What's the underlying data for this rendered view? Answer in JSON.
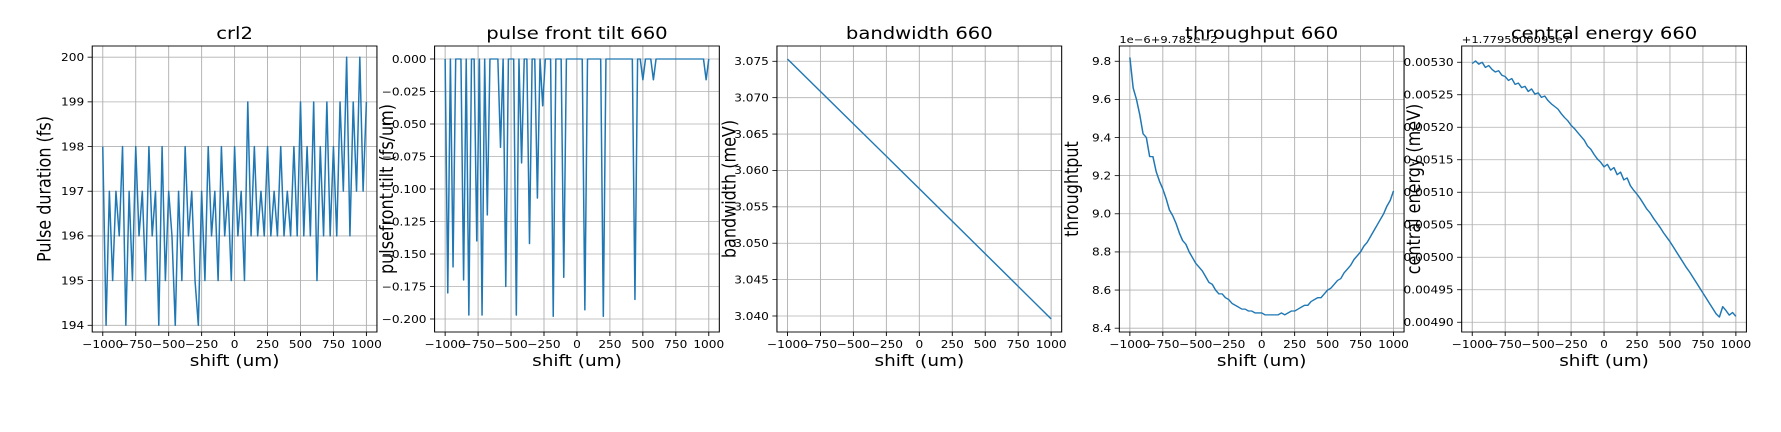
{
  "chart_data": [
    {
      "type": "line",
      "title": "crl2",
      "xlabel": "shift (um)",
      "ylabel": "Pulse duration (fs)",
      "xlim": [
        -1080,
        1080
      ],
      "ylim": [
        193.85,
        200.25
      ],
      "xticks": [
        -1000,
        -750,
        -500,
        -250,
        0,
        250,
        500,
        750,
        1000
      ],
      "xtick_labels": [
        "−1000",
        "−750",
        "−500",
        "−250",
        "0",
        "250",
        "500",
        "750",
        "1000"
      ],
      "yticks": [
        194,
        195,
        196,
        197,
        198,
        199,
        200
      ],
      "ytick_labels": [
        "194",
        "195",
        "196",
        "197",
        "198",
        "199",
        "200"
      ],
      "offset_text": "",
      "grid": true,
      "color": "#1f77b4",
      "x": [
        -1000,
        -975,
        -950,
        -925,
        -900,
        -875,
        -850,
        -825,
        -800,
        -775,
        -750,
        -725,
        -700,
        -675,
        -650,
        -625,
        -600,
        -575,
        -550,
        -525,
        -500,
        -475,
        -450,
        -425,
        -400,
        -375,
        -350,
        -325,
        -300,
        -275,
        -250,
        -225,
        -200,
        -175,
        -150,
        -125,
        -100,
        -75,
        -50,
        -25,
        0,
        25,
        50,
        75,
        100,
        125,
        150,
        175,
        200,
        225,
        250,
        275,
        300,
        325,
        350,
        375,
        400,
        425,
        450,
        475,
        500,
        525,
        550,
        575,
        600,
        625,
        650,
        675,
        700,
        725,
        750,
        775,
        800,
        825,
        850,
        875,
        900,
        925,
        950,
        975,
        1000
      ],
      "values": [
        198,
        194,
        197,
        195,
        197,
        196,
        198,
        194,
        197,
        195,
        198,
        196,
        197,
        195,
        198,
        196,
        197,
        194,
        198,
        195,
        197,
        196,
        194,
        197,
        195,
        198,
        196,
        197,
        195,
        194,
        197,
        195,
        198,
        196,
        197,
        195,
        198,
        196,
        197,
        195,
        198,
        196,
        197,
        195,
        199,
        196,
        198,
        196,
        197,
        196,
        198,
        196,
        197,
        196,
        198,
        196,
        197,
        196,
        198,
        196,
        199,
        196,
        198,
        196,
        199,
        195,
        198,
        196,
        199,
        196,
        198,
        196,
        199,
        197,
        200,
        196,
        199,
        197,
        200,
        197,
        199
      ]
    },
    {
      "type": "line",
      "title": "pulse front tilt 660",
      "xlabel": "shift (um)",
      "ylabel": "pulsefront tilt (fs/um)",
      "xlim": [
        -1080,
        1080
      ],
      "ylim": [
        -0.21,
        0.01
      ],
      "xticks": [
        -1000,
        -750,
        -500,
        -250,
        0,
        250,
        500,
        750,
        1000
      ],
      "xtick_labels": [
        "−1000",
        "−750",
        "−500",
        "−250",
        "0",
        "250",
        "500",
        "750",
        "1000"
      ],
      "yticks": [
        0.0,
        -0.025,
        -0.05,
        -0.075,
        -0.1,
        -0.125,
        -0.15,
        -0.175,
        -0.2
      ],
      "ytick_labels": [
        "0.000",
        "−0.025",
        "−0.050",
        "−0.075",
        "−0.100",
        "−0.125",
        "−0.150",
        "−0.175",
        "−0.200"
      ],
      "offset_text": "",
      "grid": true,
      "color": "#1f77b4",
      "x": [
        -1000,
        -980,
        -960,
        -940,
        -920,
        -900,
        -880,
        -860,
        -840,
        -820,
        -800,
        -780,
        -760,
        -740,
        -720,
        -700,
        -680,
        -660,
        -640,
        -620,
        -600,
        -580,
        -560,
        -540,
        -520,
        -500,
        -480,
        -460,
        -440,
        -420,
        -400,
        -380,
        -360,
        -340,
        -320,
        -300,
        -280,
        -260,
        -240,
        -220,
        -200,
        -180,
        -160,
        -140,
        -120,
        -100,
        -80,
        -60,
        -40,
        -20,
        0,
        20,
        40,
        60,
        80,
        100,
        120,
        140,
        160,
        180,
        200,
        220,
        240,
        260,
        280,
        300,
        320,
        340,
        360,
        380,
        400,
        420,
        440,
        460,
        480,
        500,
        520,
        540,
        560,
        580,
        600,
        620,
        640,
        660,
        680,
        700,
        720,
        740,
        760,
        780,
        800,
        820,
        840,
        860,
        880,
        900,
        920,
        940,
        960,
        980,
        1000
      ],
      "values": [
        0,
        -0.18,
        0,
        -0.16,
        0,
        0,
        0,
        -0.17,
        0,
        -0.197,
        0,
        0,
        -0.14,
        0,
        -0.197,
        0,
        -0.12,
        0,
        0,
        0,
        0,
        -0.068,
        0,
        -0.175,
        0,
        0,
        0,
        -0.197,
        0,
        -0.08,
        0,
        0,
        -0.142,
        0,
        0,
        -0.107,
        0,
        -0.036,
        0,
        0,
        0,
        -0.198,
        0,
        0,
        0,
        -0.168,
        0,
        0,
        0,
        0,
        0,
        0,
        0,
        -0.193,
        0,
        0,
        0,
        0,
        0,
        0,
        -0.198,
        0,
        0,
        0,
        0,
        0,
        0,
        0,
        0,
        0,
        0,
        0,
        -0.185,
        0,
        0,
        -0.016,
        0,
        0,
        0,
        -0.016,
        0,
        0,
        0,
        0,
        0,
        0,
        0,
        0,
        0,
        0,
        0,
        0,
        0,
        0,
        0,
        0,
        0,
        0,
        0,
        -0.016,
        0
      ]
    },
    {
      "type": "line",
      "title": "bandwidth 660",
      "xlabel": "shift (um)",
      "ylabel": "bandwidth (meV)",
      "xlim": [
        -1080,
        1080
      ],
      "ylim": [
        3.0378,
        3.0771
      ],
      "xticks": [
        -1000,
        -750,
        -500,
        -250,
        0,
        250,
        500,
        750,
        1000
      ],
      "xtick_labels": [
        "−1000",
        "−750",
        "−500",
        "−250",
        "0",
        "250",
        "500",
        "750",
        "1000"
      ],
      "yticks": [
        3.04,
        3.045,
        3.05,
        3.055,
        3.06,
        3.065,
        3.07,
        3.075
      ],
      "ytick_labels": [
        "3.040",
        "3.045",
        "3.050",
        "3.055",
        "3.060",
        "3.065",
        "3.070",
        "3.075"
      ],
      "offset_text": "",
      "grid": true,
      "color": "#1f77b4",
      "x": [
        -1000,
        0,
        1000
      ],
      "values": [
        3.0753,
        3.0575,
        3.0396
      ]
    },
    {
      "type": "line",
      "title": "throughput 660",
      "xlabel": "shift (um)",
      "ylabel": "throughtput",
      "xlim": [
        -1080,
        1080
      ],
      "ylim": [
        8.38,
        9.88
      ],
      "xticks": [
        -1000,
        -750,
        -500,
        -250,
        0,
        250,
        500,
        750,
        1000
      ],
      "xtick_labels": [
        "−1000",
        "−750",
        "−500",
        "−250",
        "0",
        "250",
        "500",
        "750",
        "1000"
      ],
      "yticks": [
        8.4,
        8.6,
        8.8,
        9.0,
        9.2,
        9.4,
        9.6,
        9.8
      ],
      "ytick_labels": [
        "8.4",
        "8.6",
        "8.8",
        "9.0",
        "9.2",
        "9.4",
        "9.6",
        "9.8"
      ],
      "offset_text": "1e−6+9.782e−2",
      "grid": true,
      "color": "#1f77b4",
      "x": [
        -1000,
        -975,
        -950,
        -925,
        -900,
        -875,
        -850,
        -825,
        -800,
        -775,
        -750,
        -725,
        -700,
        -675,
        -650,
        -625,
        -600,
        -575,
        -550,
        -525,
        -500,
        -475,
        -450,
        -425,
        -400,
        -375,
        -350,
        -325,
        -300,
        -275,
        -250,
        -225,
        -200,
        -175,
        -150,
        -125,
        -100,
        -75,
        -50,
        -25,
        0,
        25,
        50,
        75,
        100,
        125,
        150,
        175,
        200,
        225,
        250,
        275,
        300,
        325,
        350,
        375,
        400,
        425,
        450,
        475,
        500,
        525,
        550,
        575,
        600,
        625,
        650,
        675,
        700,
        725,
        750,
        775,
        800,
        825,
        850,
        875,
        900,
        925,
        950,
        975,
        1000
      ],
      "values": [
        9.82,
        9.66,
        9.6,
        9.52,
        9.42,
        9.4,
        9.3,
        9.3,
        9.22,
        9.17,
        9.13,
        9.08,
        9.02,
        8.99,
        8.95,
        8.9,
        8.86,
        8.84,
        8.8,
        8.77,
        8.74,
        8.72,
        8.7,
        8.67,
        8.64,
        8.63,
        8.6,
        8.58,
        8.58,
        8.56,
        8.55,
        8.53,
        8.52,
        8.51,
        8.5,
        8.5,
        8.49,
        8.49,
        8.48,
        8.48,
        8.48,
        8.47,
        8.47,
        8.47,
        8.47,
        8.47,
        8.48,
        8.47,
        8.48,
        8.49,
        8.49,
        8.5,
        8.51,
        8.52,
        8.52,
        8.54,
        8.55,
        8.56,
        8.56,
        8.58,
        8.6,
        8.61,
        8.63,
        8.65,
        8.66,
        8.69,
        8.71,
        8.73,
        8.76,
        8.78,
        8.8,
        8.83,
        8.85,
        8.88,
        8.91,
        8.94,
        8.97,
        9.0,
        9.04,
        9.07,
        9.12
      ]
    },
    {
      "type": "line",
      "title": "central energy 660",
      "xlabel": "shift (um)",
      "ylabel": "central energy (meV)",
      "xlim": [
        -1080,
        1080
      ],
      "ylim": [
        0.004885,
        0.005325
      ],
      "xticks": [
        -1000,
        -750,
        -500,
        -250,
        0,
        250,
        500,
        750,
        1000
      ],
      "xtick_labels": [
        "−1000",
        "−750",
        "−500",
        "−250",
        "0",
        "250",
        "500",
        "750",
        "1000"
      ],
      "yticks": [
        0.0049,
        0.00495,
        0.005,
        0.00505,
        0.0051,
        0.00515,
        0.0052,
        0.00525,
        0.0053
      ],
      "ytick_labels": [
        "0.00490",
        "0.00495",
        "0.00500",
        "0.00505",
        "0.00510",
        "0.00515",
        "0.00520",
        "0.00525",
        "0.00530"
      ],
      "offset_text": "+1.7795000093e7",
      "grid": true,
      "color": "#1f77b4",
      "x": [
        -1000,
        -975,
        -950,
        -925,
        -900,
        -875,
        -850,
        -825,
        -800,
        -775,
        -750,
        -725,
        -700,
        -675,
        -650,
        -625,
        -600,
        -575,
        -550,
        -525,
        -500,
        -475,
        -450,
        -425,
        -400,
        -375,
        -350,
        -325,
        -300,
        -275,
        -250,
        -225,
        -200,
        -175,
        -150,
        -125,
        -100,
        -75,
        -50,
        -25,
        0,
        25,
        50,
        75,
        100,
        125,
        150,
        175,
        200,
        225,
        250,
        275,
        300,
        325,
        350,
        375,
        400,
        425,
        450,
        475,
        500,
        525,
        550,
        575,
        600,
        625,
        650,
        675,
        700,
        725,
        750,
        775,
        800,
        825,
        850,
        875,
        900,
        925,
        950,
        975,
        1000
      ],
      "values": [
        0.005298,
        0.005302,
        0.005297,
        0.0053,
        0.005292,
        0.005295,
        0.005289,
        0.005285,
        0.005287,
        0.00528,
        0.005278,
        0.005272,
        0.005275,
        0.005266,
        0.005268,
        0.005261,
        0.005263,
        0.005255,
        0.005259,
        0.005251,
        0.005253,
        0.005246,
        0.005248,
        0.005241,
        0.005236,
        0.005232,
        0.005228,
        0.005221,
        0.005215,
        0.00521,
        0.005203,
        0.005198,
        0.005192,
        0.005186,
        0.00518,
        0.005171,
        0.005166,
        0.005158,
        0.005151,
        0.005146,
        0.005139,
        0.005143,
        0.005134,
        0.005138,
        0.005127,
        0.005131,
        0.005119,
        0.005122,
        0.00511,
        0.005103,
        0.005097,
        0.00509,
        0.005082,
        0.005074,
        0.005068,
        0.00506,
        0.005053,
        0.005046,
        0.005038,
        0.005031,
        0.005024,
        0.005016,
        0.005008,
        0.005,
        0.004992,
        0.004984,
        0.004977,
        0.004969,
        0.004961,
        0.004953,
        0.004945,
        0.004937,
        0.004929,
        0.004921,
        0.004913,
        0.004908,
        0.004924,
        0.004918,
        0.004911,
        0.004915,
        0.004909
      ]
    }
  ]
}
